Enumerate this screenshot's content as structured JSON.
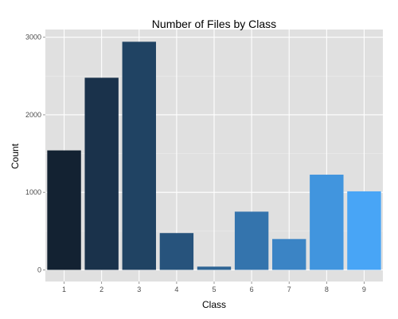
{
  "chart_data": {
    "type": "bar",
    "title": "Number of Files by Class",
    "xlabel": "Class",
    "ylabel": "Count",
    "categories": [
      "1",
      "2",
      "3",
      "4",
      "5",
      "6",
      "7",
      "8",
      "9"
    ],
    "values": [
      1541,
      2478,
      2942,
      475,
      42,
      751,
      398,
      1228,
      1013
    ],
    "ylim": [
      -150,
      3100
    ],
    "yticks": [
      0,
      1000,
      2000,
      3000
    ],
    "y_tick_labels": [
      "0",
      "1000",
      "2000",
      "3000"
    ],
    "grid": true,
    "legend": "none",
    "colors": {
      "panel_background": "#e0e0e0",
      "grid_major": "#ffffff",
      "grid_minor": "#ececec",
      "bar_low": "#132232",
      "bar_high": "#48a5f6"
    }
  }
}
